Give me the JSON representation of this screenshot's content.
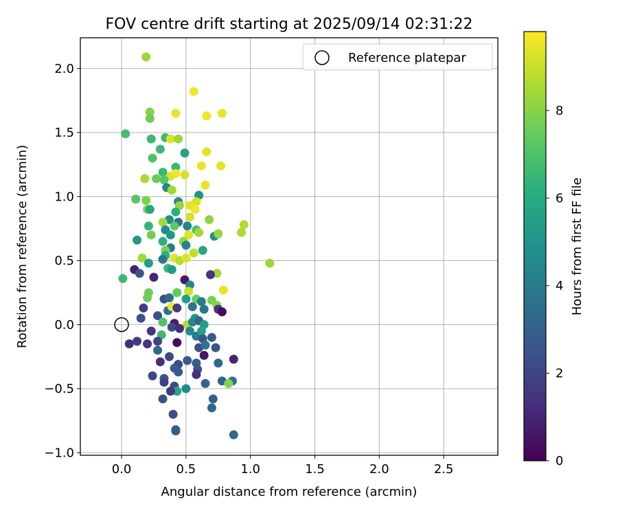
{
  "chart_data": {
    "type": "scatter",
    "title": "FOV centre drift starting at 2025/09/14 02:31:22",
    "xlabel": "Angular distance from reference (arcmin)",
    "ylabel": "Rotation from reference (arcmin)",
    "xlim": [
      -0.32,
      2.92
    ],
    "ylim": [
      -1.02,
      2.24
    ],
    "xticks": [
      0.0,
      0.5,
      1.0,
      1.5,
      2.0,
      2.5
    ],
    "xtick_labels": [
      "0.0",
      "0.5",
      "1.0",
      "1.5",
      "2.0",
      "2.5"
    ],
    "yticks": [
      -1.0,
      -0.5,
      0.0,
      0.5,
      1.0,
      1.5,
      2.0
    ],
    "ytick_labels": [
      "−1.0",
      "−0.5",
      "0.0",
      "0.5",
      "1.0",
      "1.5",
      "2.0"
    ],
    "grid": true,
    "legend": {
      "placement": "top-right",
      "entries": [
        "Reference platepar"
      ]
    },
    "reference_point": {
      "x": 0.0,
      "y": 0.0
    },
    "colorbar": {
      "label": "Hours from first FF file",
      "range": [
        0,
        9.8
      ],
      "ticks": [
        0,
        2,
        4,
        6,
        8
      ],
      "tick_labels": [
        "0",
        "2",
        "4",
        "6",
        "8"
      ],
      "colormap": "viridis"
    },
    "points_x_y_hours": [
      [
        0.19,
        2.09,
        8.3
      ],
      [
        0.56,
        1.82,
        9.6
      ],
      [
        0.22,
        1.66,
        8.0
      ],
      [
        0.42,
        1.65,
        9.5
      ],
      [
        0.78,
        1.65,
        9.5
      ],
      [
        0.66,
        1.63,
        9.6
      ],
      [
        0.22,
        1.61,
        7.6
      ],
      [
        0.03,
        1.49,
        6.8
      ],
      [
        0.34,
        1.46,
        6.6
      ],
      [
        0.23,
        1.45,
        6.6
      ],
      [
        0.38,
        1.45,
        9.3
      ],
      [
        0.44,
        1.45,
        8.3
      ],
      [
        0.3,
        1.37,
        6.6
      ],
      [
        0.49,
        1.34,
        5.6
      ],
      [
        0.66,
        1.35,
        9.4
      ],
      [
        0.24,
        1.3,
        7.0
      ],
      [
        0.42,
        1.23,
        6.6
      ],
      [
        0.62,
        1.24,
        9.5
      ],
      [
        0.77,
        1.24,
        9.4
      ],
      [
        0.32,
        1.19,
        6.6
      ],
      [
        0.38,
        1.16,
        9.3
      ],
      [
        0.42,
        1.18,
        9.6
      ],
      [
        0.49,
        1.17,
        9.2
      ],
      [
        0.18,
        1.14,
        8.5
      ],
      [
        0.27,
        1.14,
        7.5
      ],
      [
        0.33,
        1.13,
        7.2
      ],
      [
        0.65,
        1.09,
        9.5
      ],
      [
        0.35,
        1.07,
        4.6
      ],
      [
        0.39,
        1.05,
        8.4
      ],
      [
        0.6,
        1.01,
        5.0
      ],
      [
        0.11,
        0.98,
        7.2
      ],
      [
        0.19,
        0.97,
        7.8
      ],
      [
        0.44,
        0.96,
        4.6
      ],
      [
        0.58,
        0.96,
        9.2
      ],
      [
        0.45,
        0.93,
        8.2
      ],
      [
        0.53,
        0.93,
        9.4
      ],
      [
        0.2,
        0.9,
        8.0
      ],
      [
        0.22,
        0.9,
        5.8
      ],
      [
        0.57,
        0.9,
        9.6
      ],
      [
        0.42,
        0.88,
        6.2
      ],
      [
        0.53,
        0.84,
        9.1
      ],
      [
        0.37,
        0.82,
        4.8
      ],
      [
        0.44,
        0.8,
        3.6
      ],
      [
        0.32,
        0.8,
        8.4
      ],
      [
        0.41,
        0.77,
        7.3
      ],
      [
        0.51,
        0.77,
        4.3
      ],
      [
        0.68,
        0.82,
        8.1
      ],
      [
        0.21,
        0.77,
        6.4
      ],
      [
        0.34,
        0.74,
        4.7
      ],
      [
        0.58,
        0.74,
        6.8
      ],
      [
        0.6,
        0.72,
        8.4
      ],
      [
        0.23,
        0.7,
        7.7
      ],
      [
        0.38,
        0.7,
        5.2
      ],
      [
        0.52,
        0.7,
        9.4
      ],
      [
        0.72,
        0.69,
        5.0
      ],
      [
        0.75,
        0.71,
        8.2
      ],
      [
        0.95,
        0.78,
        8.6
      ],
      [
        0.93,
        0.72,
        8.5
      ],
      [
        0.12,
        0.66,
        5.2
      ],
      [
        0.32,
        0.65,
        6.2
      ],
      [
        0.48,
        0.65,
        8.1
      ],
      [
        0.5,
        0.62,
        4.3
      ],
      [
        0.38,
        0.6,
        4.0
      ],
      [
        0.34,
        0.58,
        7.8
      ],
      [
        0.34,
        0.54,
        6.2
      ],
      [
        0.56,
        0.56,
        8.8
      ],
      [
        0.63,
        0.58,
        5.8
      ],
      [
        0.16,
        0.52,
        8.4
      ],
      [
        0.32,
        0.51,
        3.9
      ],
      [
        0.41,
        0.52,
        9.4
      ],
      [
        0.45,
        0.5,
        8.7
      ],
      [
        0.5,
        0.52,
        9.3
      ],
      [
        0.21,
        0.48,
        5.4
      ],
      [
        1.15,
        0.48,
        8.3
      ],
      [
        0.36,
        0.44,
        6.6
      ],
      [
        0.39,
        0.43,
        5.3
      ],
      [
        0.1,
        0.43,
        0.9
      ],
      [
        0.14,
        0.4,
        2.6
      ],
      [
        0.74,
        0.4,
        8.4
      ],
      [
        0.69,
        0.39,
        1.5
      ],
      [
        0.01,
        0.36,
        6.6
      ],
      [
        0.25,
        0.37,
        1.0
      ],
      [
        0.49,
        0.35,
        0.6
      ],
      [
        0.53,
        0.31,
        4.5
      ],
      [
        0.79,
        0.27,
        9.5
      ],
      [
        0.21,
        0.25,
        7.6
      ],
      [
        0.43,
        0.25,
        7.4
      ],
      [
        0.52,
        0.26,
        9.0
      ],
      [
        0.2,
        0.21,
        7.6
      ],
      [
        0.17,
        0.13,
        1.8
      ],
      [
        0.33,
        0.2,
        2.4
      ],
      [
        0.37,
        0.21,
        3.5
      ],
      [
        0.5,
        0.2,
        5.5
      ],
      [
        0.58,
        0.2,
        7.5
      ],
      [
        0.62,
        0.18,
        4.1
      ],
      [
        0.7,
        0.19,
        7.8
      ],
      [
        0.74,
        0.15,
        8.0
      ],
      [
        0.28,
        0.07,
        2.4
      ],
      [
        0.36,
        0.11,
        3.6
      ],
      [
        0.39,
        0.14,
        9.6
      ],
      [
        0.43,
        0.13,
        1.7
      ],
      [
        0.55,
        0.14,
        3.7
      ],
      [
        0.64,
        0.12,
        3.9
      ],
      [
        0.75,
        0.12,
        1.5
      ],
      [
        0.78,
        0.1,
        0.3
      ],
      [
        0.15,
        0.05,
        2.5
      ],
      [
        0.32,
        0.02,
        7.0
      ],
      [
        0.41,
        0.01,
        0.8
      ],
      [
        0.51,
        0.0,
        8.7
      ],
      [
        0.55,
        0.02,
        4.5
      ],
      [
        0.57,
        0.05,
        5.0
      ],
      [
        0.6,
        0.03,
        3.2
      ],
      [
        0.64,
        0.0,
        5.5
      ],
      [
        0.23,
        -0.05,
        1.5
      ],
      [
        0.39,
        -0.02,
        2.2
      ],
      [
        0.45,
        -0.03,
        1.2
      ],
      [
        0.53,
        -0.05,
        4.6
      ],
      [
        0.58,
        -0.09,
        4.0
      ],
      [
        0.62,
        -0.05,
        5.6
      ],
      [
        0.31,
        -0.08,
        6.6
      ],
      [
        0.43,
        -0.14,
        0.3
      ],
      [
        0.63,
        -0.11,
        2.6
      ],
      [
        0.7,
        -0.1,
        2.8
      ],
      [
        0.06,
        -0.15,
        1.3
      ],
      [
        0.12,
        -0.13,
        1.8
      ],
      [
        0.2,
        -0.15,
        1.5
      ],
      [
        0.28,
        -0.13,
        2.0
      ],
      [
        0.6,
        -0.18,
        2.4
      ],
      [
        0.65,
        -0.16,
        3.8
      ],
      [
        0.73,
        -0.18,
        2.6
      ],
      [
        0.28,
        -0.2,
        3.2
      ],
      [
        0.51,
        -0.28,
        2.8
      ],
      [
        0.37,
        -0.25,
        2.1
      ],
      [
        0.64,
        -0.24,
        0.6
      ],
      [
        0.3,
        -0.29,
        1.4
      ],
      [
        0.58,
        -0.3,
        2.9
      ],
      [
        0.75,
        -0.3,
        3.3
      ],
      [
        0.87,
        -0.27,
        1.0
      ],
      [
        0.44,
        -0.31,
        2.2
      ],
      [
        0.41,
        -0.34,
        3.0
      ],
      [
        0.44,
        -0.37,
        2.8
      ],
      [
        0.59,
        -0.35,
        2.4
      ],
      [
        0.24,
        -0.4,
        2.1
      ],
      [
        0.58,
        -0.39,
        1.3
      ],
      [
        0.33,
        -0.42,
        2.5
      ],
      [
        0.33,
        -0.45,
        1.9
      ],
      [
        0.65,
        -0.46,
        3.1
      ],
      [
        0.78,
        -0.44,
        3.1
      ],
      [
        0.86,
        -0.44,
        3.7
      ],
      [
        0.83,
        -0.46,
        7.9
      ],
      [
        0.41,
        -0.48,
        2.2
      ],
      [
        0.5,
        -0.5,
        4.7
      ],
      [
        0.43,
        -0.52,
        5.7
      ],
      [
        0.38,
        -0.52,
        1.7
      ],
      [
        0.32,
        -0.58,
        2.4
      ],
      [
        0.71,
        -0.58,
        3.0
      ],
      [
        0.7,
        -0.65,
        3.2
      ],
      [
        0.4,
        -0.7,
        2.4
      ],
      [
        0.42,
        -0.82,
        3.0
      ],
      [
        0.42,
        -0.83,
        2.8
      ],
      [
        0.87,
        -0.86,
        3.3
      ]
    ]
  }
}
